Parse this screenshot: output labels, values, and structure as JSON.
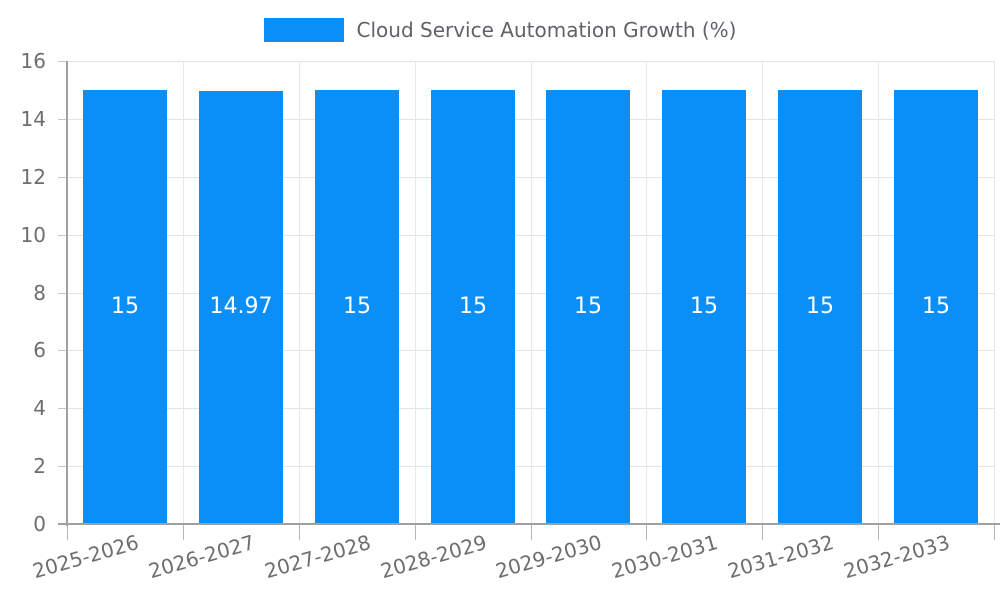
{
  "chart_data": {
    "type": "bar",
    "title": "",
    "legend_label": "Cloud Service Automation Growth (%)",
    "legend_position": "top-center",
    "categories": [
      "2025-2026",
      "2026-2027",
      "2027-2028",
      "2028-2029",
      "2029-2030",
      "2030-2031",
      "2031-2032",
      "2032-2033"
    ],
    "values": [
      15,
      14.97,
      15,
      15,
      15,
      15,
      15,
      15
    ],
    "bar_value_labels": [
      "15",
      "14.97",
      "15",
      "15",
      "15",
      "15",
      "15",
      "15"
    ],
    "xlabel": "",
    "ylabel": "",
    "ylim": [
      0,
      16
    ],
    "yticks": [
      0,
      2,
      4,
      6,
      8,
      10,
      12,
      14,
      16
    ],
    "grid": true,
    "bar_color": "#0a8ff8",
    "bar_label_color": "#ffffff"
  }
}
